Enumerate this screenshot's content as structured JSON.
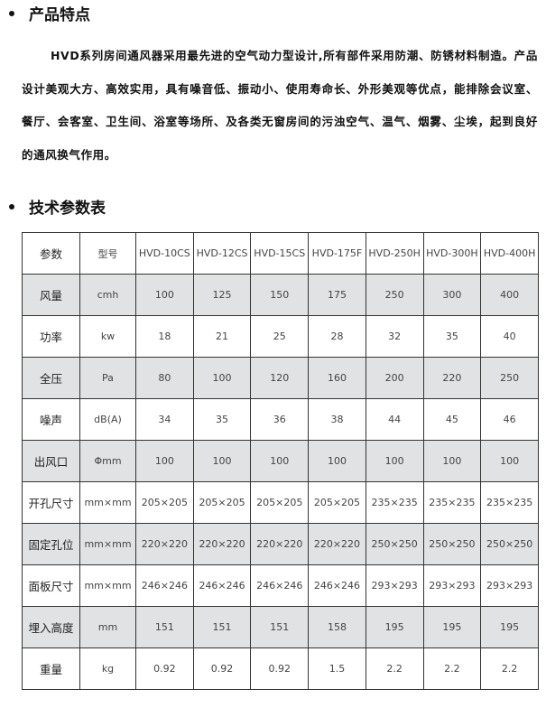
{
  "features": {
    "title": "产品特点",
    "paragraph": "HVD系列房间通风器采用最先进的空气动力型设计,所有部件采用防潮、防锈材料制造。产品设计美观大方、高效实用，具有噪音低、振动小、使用寿命长、外形美观等优点，能排除会议室、餐厅、会客室、卫生间、浴室等场所、及各类无窗房间的污浊空气、温气、烟雾、尘埃，起到良好的通风换气作用。"
  },
  "specs": {
    "title": "技术参数表",
    "header": [
      "参数",
      "型号",
      "HVD-10CS",
      "HVD-12CS",
      "HVD-15CS",
      "HVD-175F",
      "HVD-250H",
      "HVD-300H",
      "HVD-400H"
    ],
    "rows": [
      [
        "风量",
        "cmh",
        "100",
        "125",
        "150",
        "175",
        "250",
        "300",
        "400"
      ],
      [
        "功率",
        "kw",
        "18",
        "21",
        "25",
        "28",
        "32",
        "35",
        "40"
      ],
      [
        "全压",
        "Pa",
        "80",
        "100",
        "120",
        "160",
        "200",
        "220",
        "250"
      ],
      [
        "噪声",
        "dB(A)",
        "34",
        "35",
        "36",
        "38",
        "44",
        "45",
        "46"
      ],
      [
        "出风口",
        "Φmm",
        "100",
        "100",
        "100",
        "100",
        "100",
        "100",
        "100"
      ],
      [
        "开孔尺寸",
        "mm×mm",
        "205×205",
        "205×205",
        "205×205",
        "205×205",
        "235×235",
        "235×235",
        "235×235"
      ],
      [
        "固定孔位",
        "mm×mm",
        "220×220",
        "220×220",
        "220×220",
        "220×220",
        "250×250",
        "250×250",
        "250×250"
      ],
      [
        "面板尺寸",
        "mm×mm",
        "246×246",
        "246×246",
        "246×246",
        "246×246",
        "293×293",
        "293×293",
        "293×293"
      ],
      [
        "埋入高度",
        "mm",
        "151",
        "151",
        "151",
        "158",
        "195",
        "195",
        "195"
      ],
      [
        "重量",
        "kg",
        "0.92",
        "0.92",
        "0.92",
        "1.5",
        "2.2",
        "2.2",
        "2.2"
      ]
    ],
    "shade_color": "#e1e2e4"
  }
}
